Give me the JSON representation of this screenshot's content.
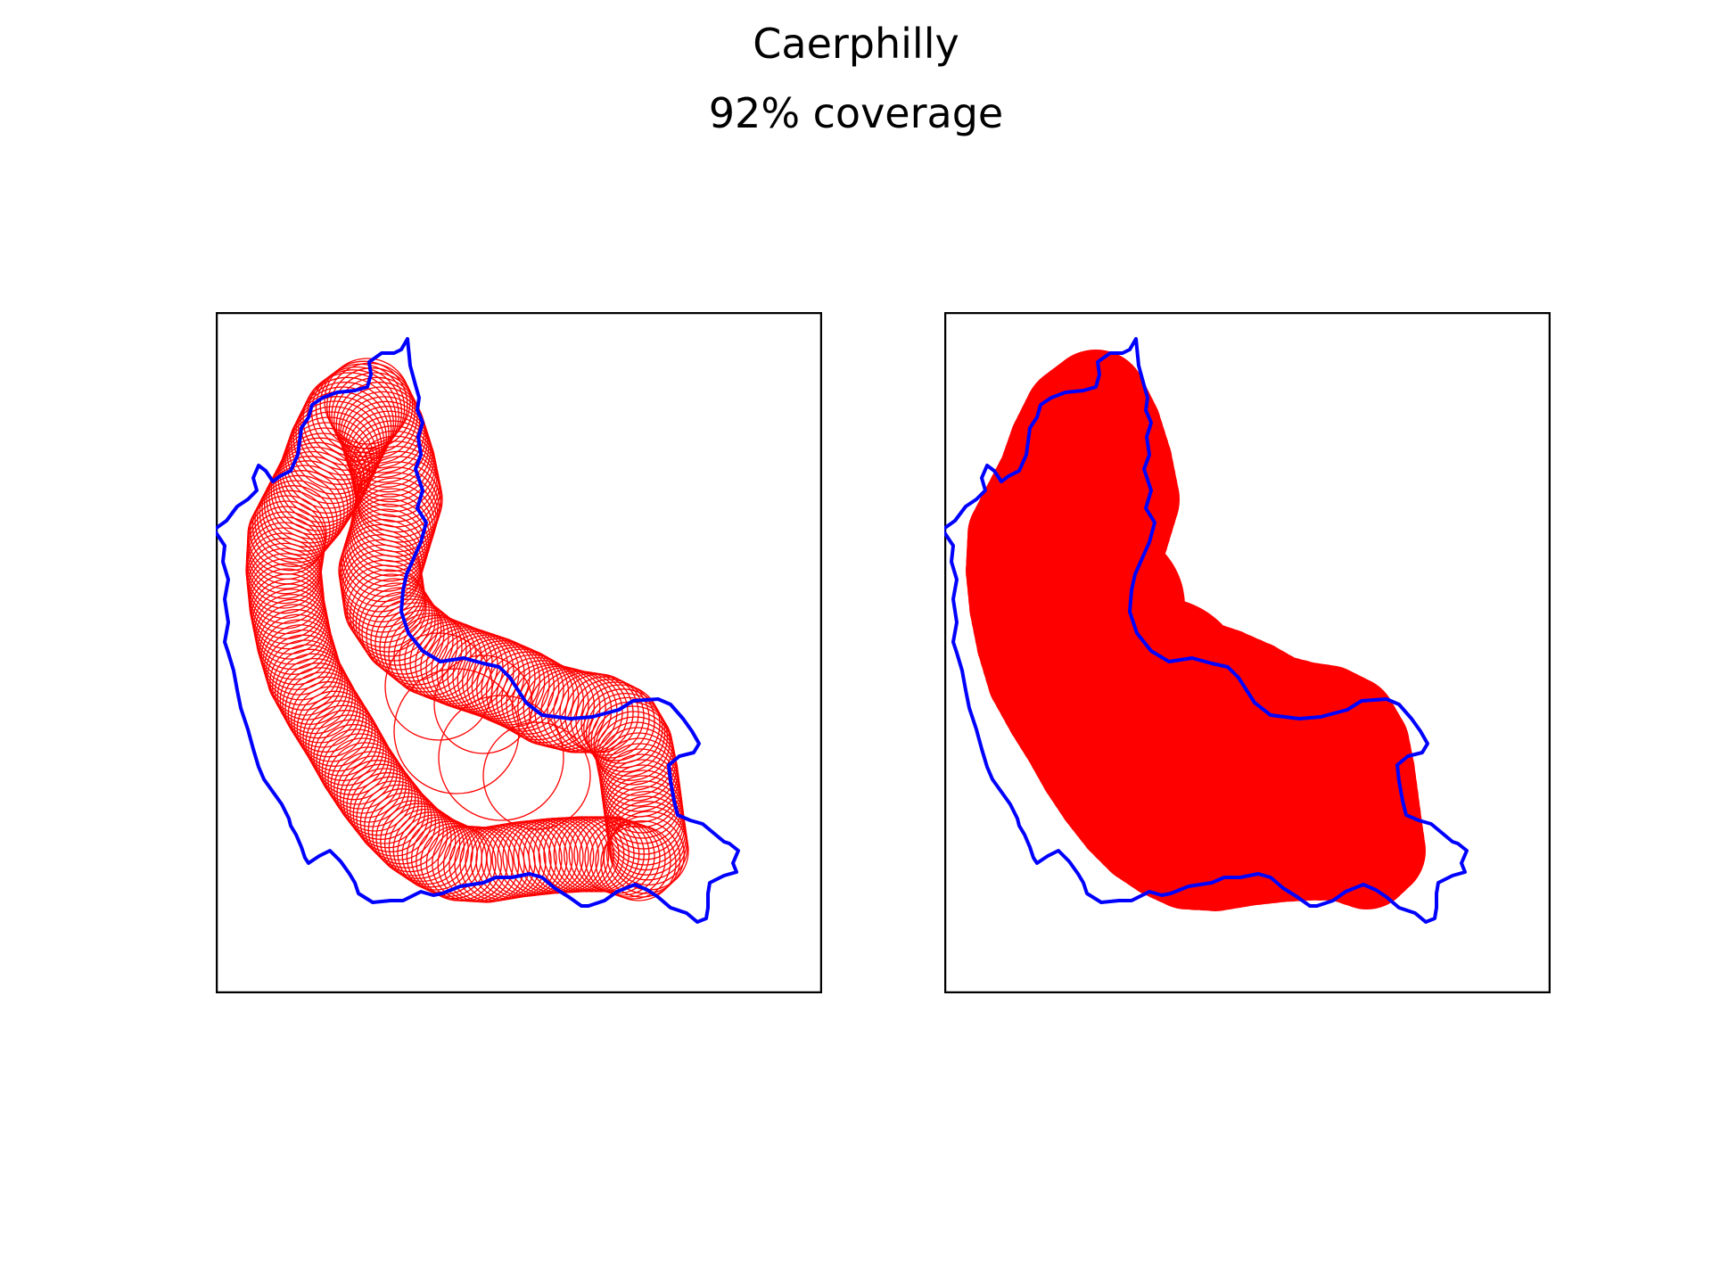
{
  "figure": {
    "title": "Caerphilly",
    "subtitle": "92% coverage"
  },
  "map": {
    "boundary_color": "#0000ff",
    "coverage_color": "#ff0000",
    "panels": [
      {
        "id": "left",
        "style": "circle-outlines"
      },
      {
        "id": "right",
        "style": "filled-union"
      }
    ]
  }
}
